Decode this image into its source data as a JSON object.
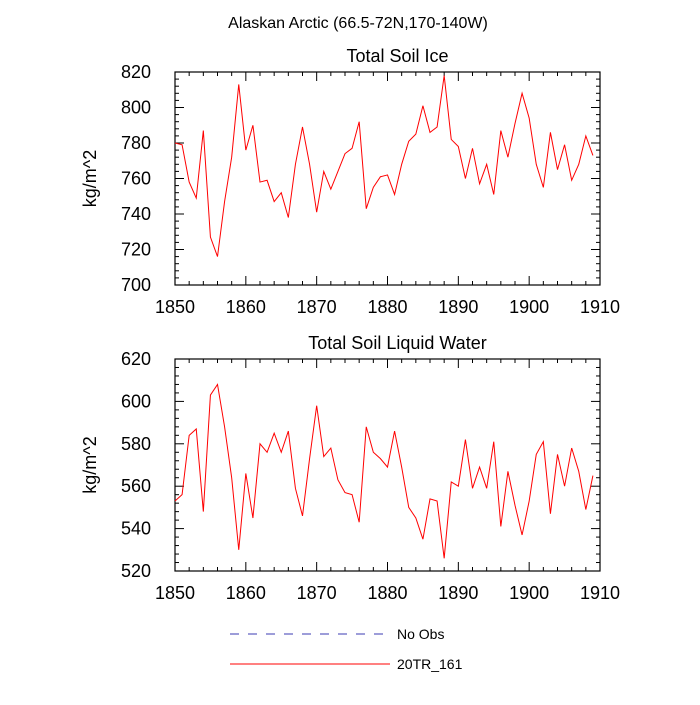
{
  "figure": {
    "suptitle": "Alaskan Arctic (66.5-72N,170-140W)"
  },
  "legend": {
    "placement": "bottom-center",
    "items": [
      {
        "label": "No Obs",
        "color": "#3b3bb3",
        "dash": "dashed"
      },
      {
        "label": "20TR_161",
        "color": "#ff0000",
        "dash": "solid"
      }
    ]
  },
  "chart_data": [
    {
      "type": "line",
      "title": "Total Soil Ice",
      "ylabel": "kg/m^2",
      "xlim": [
        1850,
        1910
      ],
      "ylim": [
        700,
        820
      ],
      "xticks": [
        1850,
        1860,
        1870,
        1880,
        1890,
        1900,
        1910
      ],
      "yticks": [
        700,
        720,
        740,
        760,
        780,
        800,
        820
      ],
      "grid": false,
      "series": [
        {
          "name": "20TR_161",
          "color": "#ff0000",
          "x": [
            1850,
            1851,
            1852,
            1853,
            1854,
            1855,
            1856,
            1857,
            1858,
            1859,
            1860,
            1861,
            1862,
            1863,
            1864,
            1865,
            1866,
            1867,
            1868,
            1869,
            1870,
            1871,
            1872,
            1873,
            1874,
            1875,
            1876,
            1877,
            1878,
            1879,
            1880,
            1881,
            1882,
            1883,
            1884,
            1885,
            1886,
            1887,
            1888,
            1889,
            1890,
            1891,
            1892,
            1893,
            1894,
            1895,
            1896,
            1897,
            1898,
            1899,
            1900,
            1901,
            1902,
            1903,
            1904,
            1905,
            1906,
            1907,
            1908,
            1909
          ],
          "values": [
            780,
            779,
            758,
            749,
            787,
            727,
            716,
            747,
            772,
            813,
            776,
            790,
            758,
            759,
            747,
            752,
            738,
            768,
            789,
            768,
            741,
            764,
            754,
            764,
            774,
            777,
            792,
            743,
            755,
            761,
            762,
            751,
            768,
            781,
            785,
            801,
            786,
            789,
            818,
            782,
            778,
            760,
            777,
            757,
            768,
            751,
            787,
            772,
            791,
            808,
            794,
            768,
            755,
            786,
            765,
            779,
            759,
            768,
            784,
            773
          ]
        }
      ]
    },
    {
      "type": "line",
      "title": "Total Soil Liquid Water",
      "ylabel": "kg/m^2",
      "xlim": [
        1850,
        1910
      ],
      "ylim": [
        520,
        620
      ],
      "xticks": [
        1850,
        1860,
        1870,
        1880,
        1890,
        1900,
        1910
      ],
      "yticks": [
        520,
        540,
        560,
        580,
        600,
        620
      ],
      "grid": false,
      "series": [
        {
          "name": "20TR_161",
          "color": "#ff0000",
          "x": [
            1850,
            1851,
            1852,
            1853,
            1854,
            1855,
            1856,
            1857,
            1858,
            1859,
            1860,
            1861,
            1862,
            1863,
            1864,
            1865,
            1866,
            1867,
            1868,
            1869,
            1870,
            1871,
            1872,
            1873,
            1874,
            1875,
            1876,
            1877,
            1878,
            1879,
            1880,
            1881,
            1882,
            1883,
            1884,
            1885,
            1886,
            1887,
            1888,
            1889,
            1890,
            1891,
            1892,
            1893,
            1894,
            1895,
            1896,
            1897,
            1898,
            1899,
            1900,
            1901,
            1902,
            1903,
            1904,
            1905,
            1906,
            1907,
            1908,
            1909
          ],
          "values": [
            553,
            556,
            584,
            587,
            548,
            603,
            608,
            588,
            564,
            530,
            566,
            545,
            580,
            576,
            585,
            576,
            586,
            559,
            546,
            573,
            598,
            574,
            578,
            563,
            557,
            556,
            543,
            588,
            576,
            573,
            569,
            586,
            569,
            550,
            545,
            535,
            554,
            553,
            526,
            562,
            560,
            582,
            559,
            569,
            559,
            581,
            541,
            567,
            551,
            537,
            553,
            575,
            581,
            547,
            575,
            560,
            578,
            567,
            549,
            565
          ]
        }
      ]
    }
  ]
}
